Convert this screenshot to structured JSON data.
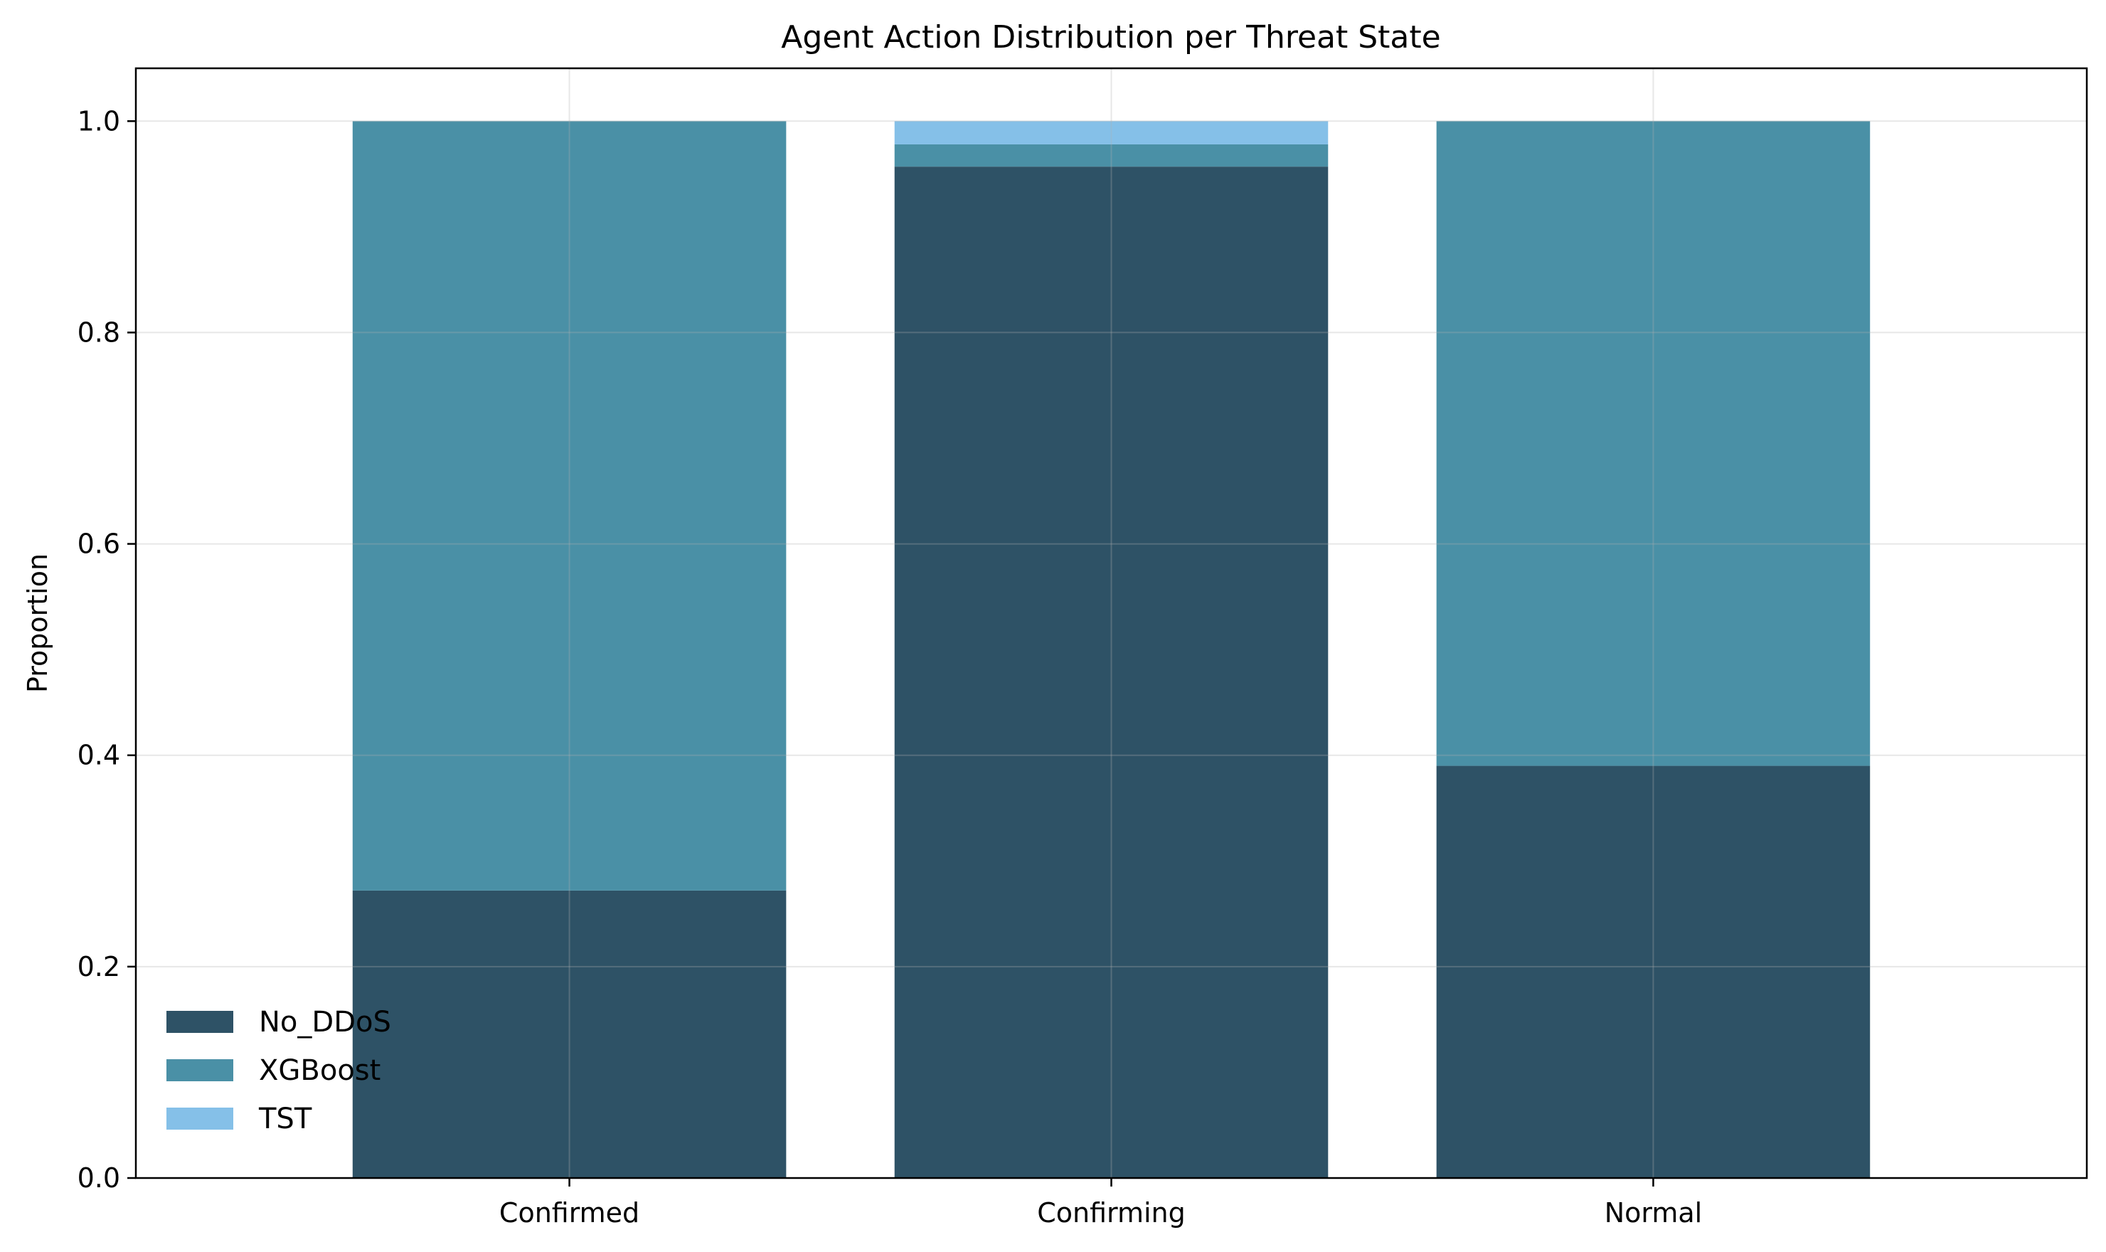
{
  "chart_data": {
    "type": "bar",
    "stacked": true,
    "title": "Agent Action Distribution per Threat State",
    "xlabel": "",
    "ylabel": "Proportion",
    "categories": [
      "Confirmed",
      "Confirming",
      "Normal"
    ],
    "series": [
      {
        "name": "No_DDoS",
        "color": "#2e5266",
        "values": [
          0.272,
          0.957,
          0.39
        ]
      },
      {
        "name": "XGBoost",
        "color": "#4a90a6",
        "values": [
          0.728,
          0.021,
          0.61
        ]
      },
      {
        "name": "TST",
        "color": "#85c0e8",
        "values": [
          0.0,
          0.022,
          0.0
        ]
      }
    ],
    "ylim": [
      0,
      1.05
    ],
    "yticks": [
      "0.0",
      "0.2",
      "0.4",
      "0.6",
      "0.8",
      "1.0"
    ],
    "grid": true,
    "legend_position": "lower-left"
  }
}
